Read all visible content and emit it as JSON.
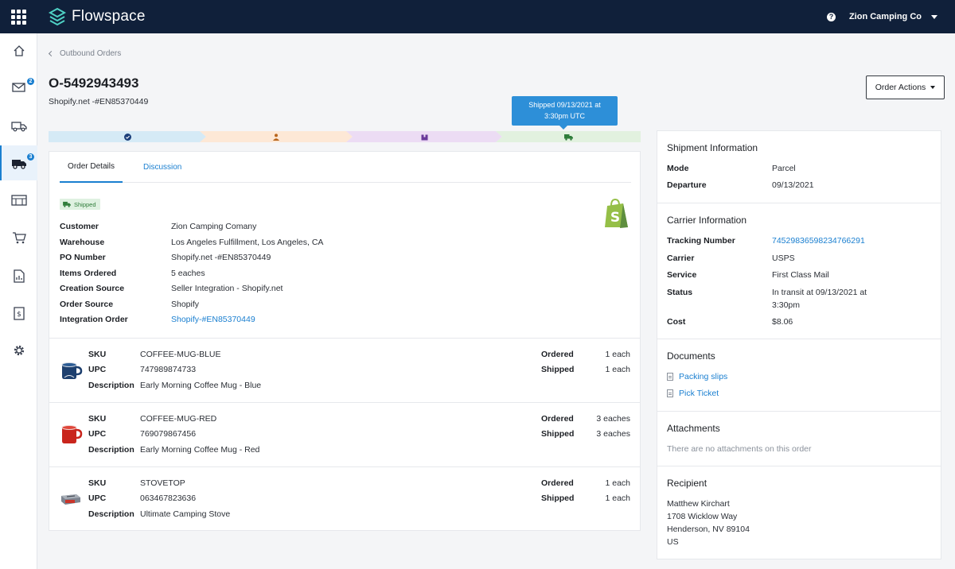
{
  "brand": {
    "name": "Flowspace",
    "accent": "#1a7fd0",
    "nav_bg": "#10203a"
  },
  "header": {
    "account_name": "Zion Camping Co",
    "help_icon": "question-circle-icon"
  },
  "sidebar": {
    "items": [
      {
        "icon": "home-icon"
      },
      {
        "icon": "inbox-icon",
        "badge": "2"
      },
      {
        "icon": "inbound-truck-icon"
      },
      {
        "icon": "outbound-truck-icon",
        "badge": "3",
        "active": true
      },
      {
        "icon": "warehouse-icon"
      },
      {
        "icon": "cart-icon"
      },
      {
        "icon": "report-icon"
      },
      {
        "icon": "invoice-icon"
      },
      {
        "icon": "settings-icon"
      }
    ]
  },
  "breadcrumb": {
    "label": "Outbound Orders"
  },
  "order": {
    "id": "O-5492943493",
    "reference": "Shopify.net -#EN85370449",
    "actions_label": "Order Actions",
    "tooltip_line1": "Shipped 09/13/2021 at",
    "tooltip_line2": "3:30pm UTC"
  },
  "progress": {
    "steps": [
      {
        "icon": "check-circle-icon",
        "color": "#d5eaf6"
      },
      {
        "icon": "person-icon",
        "color": "#fde8d6"
      },
      {
        "icon": "box-icon",
        "color": "#ecdcf4"
      },
      {
        "icon": "truck-icon",
        "color": "#e2f1df"
      }
    ]
  },
  "tabs": {
    "details": "Order Details",
    "discussion": "Discussion"
  },
  "details": {
    "status": "Shipped",
    "rows": [
      {
        "label": "Customer",
        "value": "Zion Camping Comany"
      },
      {
        "label": "Warehouse",
        "value": "Los Angeles Fulfillment, Los Angeles, CA"
      },
      {
        "label": "PO Number",
        "value": "Shopify.net -#EN85370449"
      },
      {
        "label": "Items Ordered",
        "value": "5 eaches"
      },
      {
        "label": "Creation Source",
        "value": "Seller Integration - Shopify.net"
      },
      {
        "label": "Order Source",
        "value": "Shopify"
      },
      {
        "label": "Integration Order",
        "value": "Shopify-#EN85370449"
      }
    ]
  },
  "item_labels": {
    "sku": "SKU",
    "upc": "UPC",
    "description": "Description",
    "ordered": "Ordered",
    "shipped": "Shipped"
  },
  "items": [
    {
      "sku": "COFFEE-MUG-BLUE",
      "upc": "747989874733",
      "description": "Early Morning Coffee Mug - Blue",
      "ordered": "1 each",
      "shipped": "1 each",
      "image": "blue-mug-image"
    },
    {
      "sku": "COFFEE-MUG-RED",
      "upc": "769079867456",
      "description": "Early Morning Coffee Mug - Red",
      "ordered": "3 eaches",
      "shipped": "3 eaches",
      "image": "red-mug-image"
    },
    {
      "sku": "STOVETOP",
      "upc": "063467823636",
      "description": "Ultimate Camping Stove",
      "ordered": "1 each",
      "shipped": "1 each",
      "image": "stove-image"
    }
  ],
  "shipment": {
    "title": "Shipment Information",
    "mode_label": "Mode",
    "mode": "Parcel",
    "departure_label": "Departure",
    "departure": "09/13/2021"
  },
  "carrier": {
    "title": "Carrier Information",
    "tracking_label": "Tracking Number",
    "tracking": "74529836598234766291",
    "carrier_label": "Carrier",
    "carrier": "USPS",
    "service_label": "Service",
    "service": "First Class Mail",
    "status_label": "Status",
    "status_line1": "In transit at 09/13/2021 at",
    "status_line2": "3:30pm",
    "cost_label": "Cost",
    "cost": "$8.06"
  },
  "documents": {
    "title": "Documents",
    "items": [
      "Packing slips",
      "Pick Ticket"
    ]
  },
  "attachments": {
    "title": "Attachments",
    "empty": "There are no attachments on this order"
  },
  "recipient": {
    "title": "Recipient",
    "name": "Matthew Kirchart",
    "street": "1708 Wicklow Way",
    "city": "Henderson, NV 89104",
    "country": "US"
  }
}
